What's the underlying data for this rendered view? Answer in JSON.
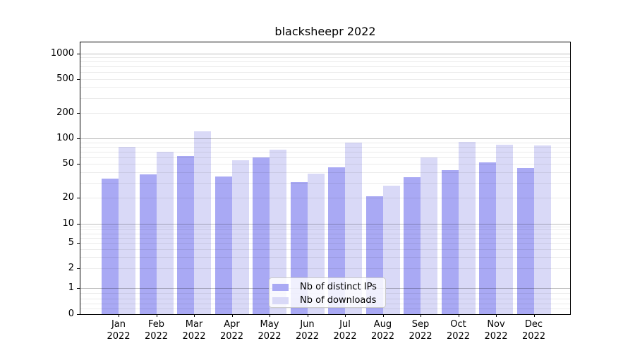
{
  "chart_data": {
    "type": "bar",
    "title": "blacksheepr 2022",
    "categories": [
      "Jan",
      "Feb",
      "Mar",
      "Apr",
      "May",
      "Jun",
      "Jul",
      "Aug",
      "Sep",
      "Oct",
      "Nov",
      "Dec"
    ],
    "category_year": "2022",
    "series": [
      {
        "name": "Nb of distinct IPs",
        "color": "#a9a9f4",
        "values": [
          34,
          38,
          63,
          36,
          60,
          31,
          46,
          21,
          35,
          43,
          53,
          45
        ]
      },
      {
        "name": "Nb of downloads",
        "color": "#d9d9f7",
        "values": [
          80,
          70,
          122,
          56,
          75,
          39,
          90,
          28,
          60,
          92,
          85,
          83
        ]
      }
    ],
    "yscale": "symlog",
    "ylim": [
      0,
      1346
    ],
    "y_tick_labels": [
      "1000",
      "500",
      "200",
      "100",
      "50",
      "20",
      "10",
      "5",
      "2",
      "1",
      "0"
    ],
    "y_major_gridlines": [
      1,
      10,
      100,
      1000
    ],
    "y_minor_gridlines": [
      0.2,
      0.4,
      0.6,
      0.8,
      2,
      3,
      4,
      5,
      6,
      7,
      8,
      9,
      20,
      30,
      40,
      50,
      60,
      70,
      80,
      90,
      200,
      300,
      400,
      500,
      600,
      700,
      800,
      900
    ],
    "grid": true,
    "legend_position": "lower center",
    "xlabel": "",
    "ylabel": ""
  },
  "colors": {
    "background": "#ffffff",
    "axis": "#000000",
    "bar_distinct_ips": "#a9a9f4",
    "bar_downloads": "#d9d9f7"
  }
}
